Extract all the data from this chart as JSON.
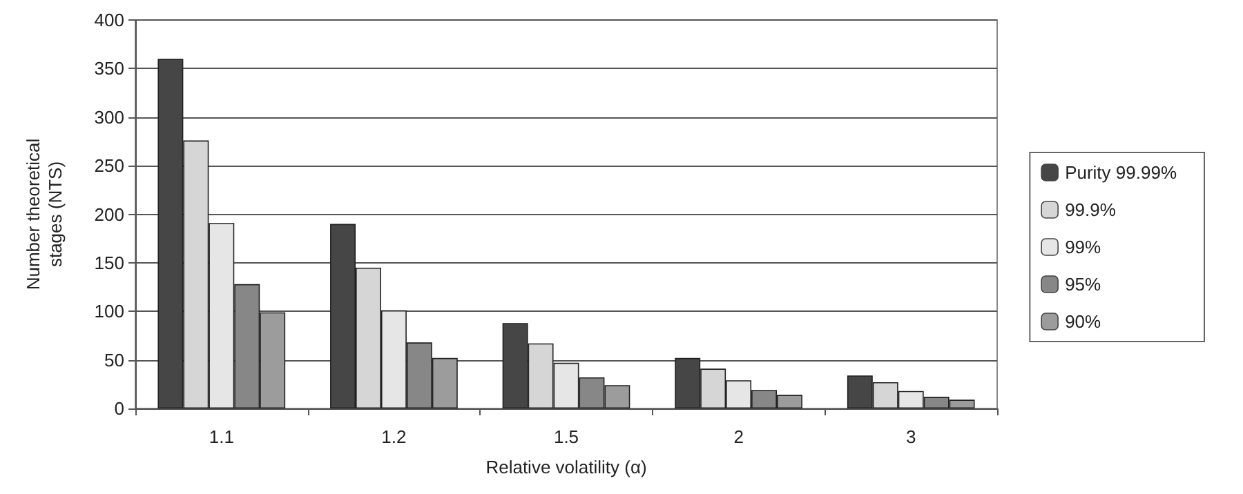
{
  "chart_data": {
    "type": "bar",
    "xlabel": "Relative volatility (α)",
    "ylabel": "Number theoretical\nstages (NTS)",
    "categories": [
      "1.1",
      "1.2",
      "1.5",
      "2",
      "3"
    ],
    "series": [
      {
        "name": "Purity 99.99%",
        "color": "#464646",
        "values": [
          360,
          190,
          88,
          52,
          34
        ]
      },
      {
        "name": "99.9%",
        "color": "#d6d6d6",
        "values": [
          276,
          145,
          67,
          41,
          27
        ]
      },
      {
        "name": "99%",
        "color": "#e6e6e6",
        "values": [
          191,
          101,
          47,
          29,
          18
        ]
      },
      {
        "name": "95%",
        "color": "#878787",
        "values": [
          128,
          68,
          32,
          19,
          12
        ]
      },
      {
        "name": "90%",
        "color": "#9c9c9c",
        "values": [
          99,
          52,
          24,
          14,
          9
        ]
      }
    ],
    "ylim": [
      0,
      400
    ],
    "yticks": [
      0,
      50,
      100,
      150,
      200,
      250,
      300,
      350,
      400
    ],
    "grid": "y",
    "legend": "right"
  }
}
